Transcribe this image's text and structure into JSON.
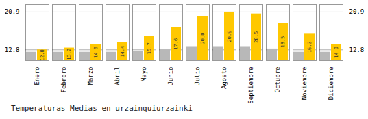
{
  "chart_data": {
    "type": "bar",
    "title": "Temperaturas Medias en urzainquiurzainki",
    "categories": [
      "Enero",
      "Febrero",
      "Marzo",
      "Abril",
      "Mayo",
      "Junio",
      "Julio",
      "Agosto",
      "Septiembre",
      "Octubre",
      "Noviembre",
      "Diciembre"
    ],
    "series": [
      {
        "color": "#B8B8B8",
        "values": [
          12.3,
          12.3,
          12.3,
          12.3,
          12.5,
          12.8,
          13.5,
          13.5,
          13.5,
          13.0,
          12.3,
          12.3
        ]
      },
      {
        "color": "#FFC800",
        "values": [
          12.8,
          13.2,
          14.0,
          14.4,
          15.7,
          17.6,
          20.0,
          20.9,
          20.5,
          18.5,
          16.3,
          14.0
        ],
        "data_labels": true,
        "value_labels": [
          "12.8",
          "13.2",
          "14.0",
          "14.4",
          "15.7",
          "17.6",
          "20.0",
          "20.9",
          "20.5",
          "18.5",
          "16.3",
          "14.0"
        ]
      }
    ],
    "ylim": [
      10.5,
      22.5
    ],
    "yticks": [
      12.8,
      20.9
    ],
    "grid": true
  }
}
